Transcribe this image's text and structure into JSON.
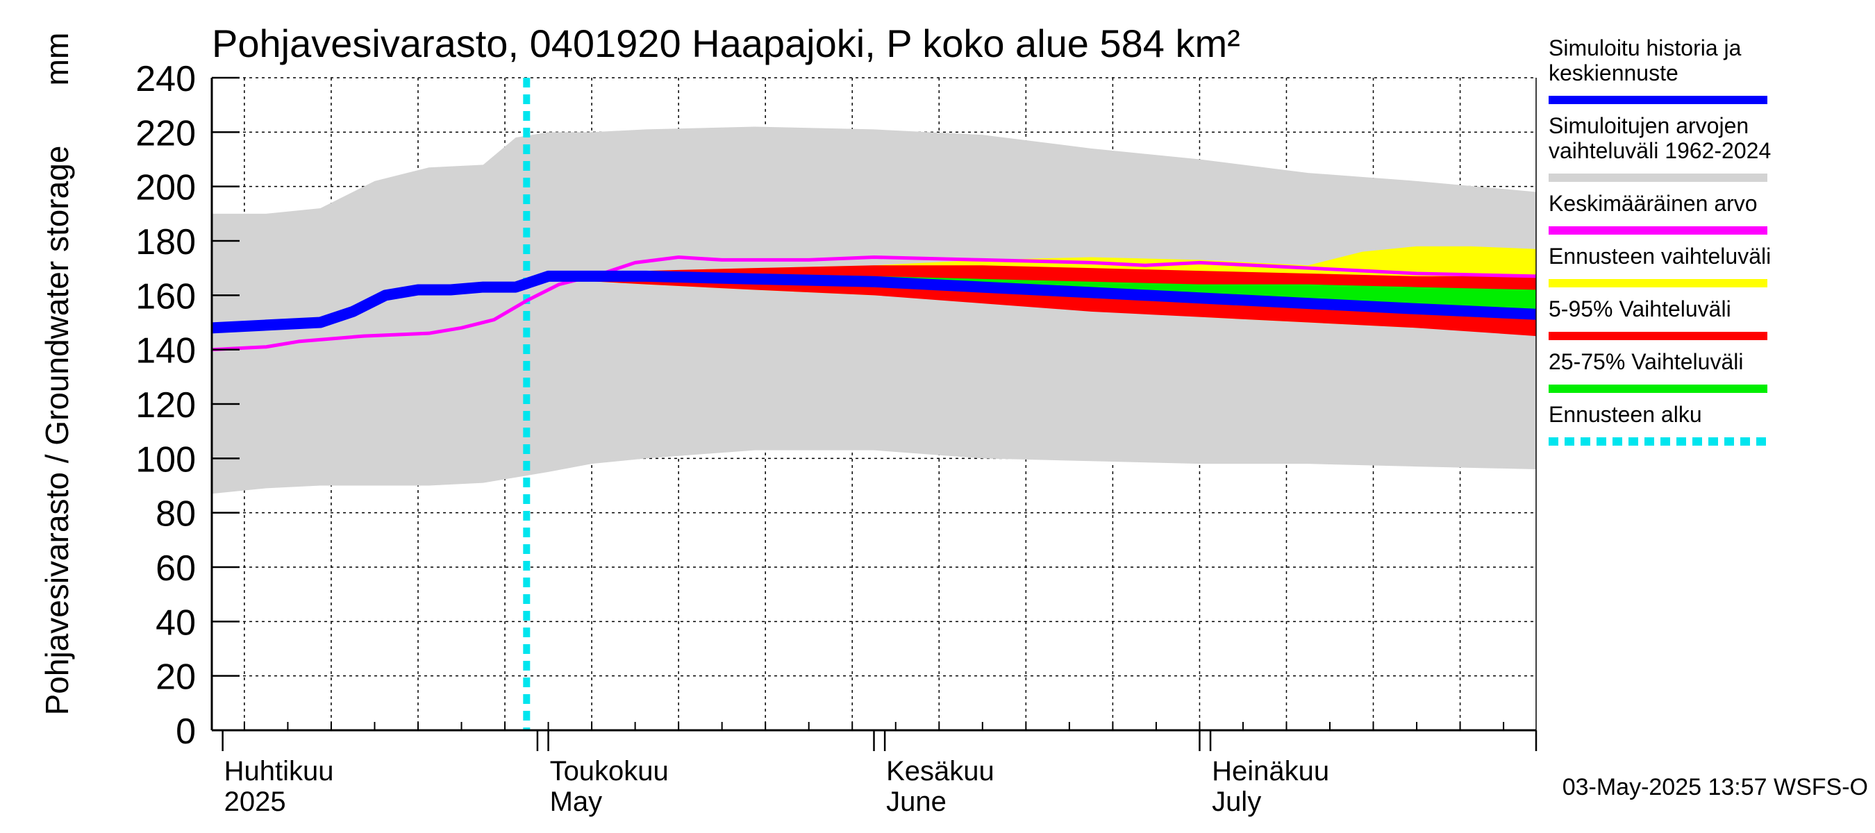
{
  "chart_data": {
    "type": "area",
    "title": "Pohjavesivarasto, 0401920 Haapajoki, P koko alue 584 km²",
    "ylabel": "Pohjavesivarasto / Groundwater storage",
    "yunit": "mm",
    "ylim": [
      0,
      240
    ],
    "yticks": [
      0,
      20,
      40,
      60,
      80,
      100,
      120,
      140,
      160,
      180,
      200,
      220,
      240
    ],
    "xlim": [
      "2025-03-31",
      "2025-07-31"
    ],
    "grid": true,
    "legend_position": "right",
    "month_labels": [
      {
        "date": "2025-04-01",
        "line1": "Huhtikuu",
        "line2": "2025"
      },
      {
        "date": "2025-05-01",
        "line1": "Toukokuu",
        "line2": "May"
      },
      {
        "date": "2025-06-01",
        "line1": "Kesäkuu",
        "line2": "June"
      },
      {
        "date": "2025-07-01",
        "line1": "Heinäkuu",
        "line2": "July"
      }
    ],
    "forecast_start": "2025-04-29",
    "series": [
      {
        "name": "Simuloitujen arvojen vaihteluväli 1962-2024",
        "kind": "band",
        "color": "#d3d3d3",
        "x": [
          "2025-03-31",
          "2025-04-05",
          "2025-04-10",
          "2025-04-15",
          "2025-04-20",
          "2025-04-25",
          "2025-04-28",
          "2025-05-01",
          "2025-05-05",
          "2025-05-10",
          "2025-05-20",
          "2025-05-31",
          "2025-06-10",
          "2025-06-20",
          "2025-06-30",
          "2025-07-10",
          "2025-07-20",
          "2025-07-31"
        ],
        "low": [
          87,
          89,
          90,
          90,
          90,
          91,
          93,
          95,
          98,
          100,
          103,
          103,
          100,
          99,
          98,
          98,
          97,
          96
        ],
        "high": [
          190,
          190,
          192,
          202,
          207,
          208,
          218,
          220,
          220,
          221,
          222,
          221,
          219,
          214,
          210,
          205,
          202,
          198
        ]
      },
      {
        "name": "Ennusteen vaihteluväli",
        "kind": "band",
        "color": "#ffff00",
        "x": [
          "2025-05-01",
          "2025-05-10",
          "2025-05-20",
          "2025-05-31",
          "2025-06-10",
          "2025-06-20",
          "2025-06-30",
          "2025-07-10",
          "2025-07-15",
          "2025-07-20",
          "2025-07-25",
          "2025-07-31"
        ],
        "low": [
          166,
          164,
          162,
          160,
          158,
          155,
          152,
          150,
          149,
          148,
          147,
          146
        ],
        "high": [
          168,
          169,
          170,
          171,
          173,
          174,
          173,
          171,
          176,
          178,
          178,
          177
        ]
      },
      {
        "name": "5-95% Vaihteluväli",
        "kind": "band",
        "color": "#ff0000",
        "x": [
          "2025-05-01",
          "2025-05-10",
          "2025-05-20",
          "2025-05-31",
          "2025-06-10",
          "2025-06-20",
          "2025-06-30",
          "2025-07-10",
          "2025-07-20",
          "2025-07-31"
        ],
        "low": [
          166,
          164,
          162,
          160,
          157,
          154,
          152,
          150,
          148,
          145
        ],
        "high": [
          168,
          169,
          170,
          171,
          171,
          170,
          169,
          168,
          167,
          167
        ]
      },
      {
        "name": "25-75% Vaihteluväli",
        "kind": "band",
        "color": "#00ee00",
        "x": [
          "2025-05-01",
          "2025-05-10",
          "2025-05-20",
          "2025-05-31",
          "2025-06-10",
          "2025-06-20",
          "2025-06-30",
          "2025-07-10",
          "2025-07-20",
          "2025-07-31"
        ],
        "low": [
          167,
          166,
          165,
          163,
          161,
          159,
          157,
          155,
          153,
          151
        ],
        "high": [
          168,
          168,
          168,
          167,
          166,
          165,
          164,
          164,
          163,
          162
        ]
      },
      {
        "name": "Keskimääräinen arvo",
        "kind": "line",
        "color": "#ff00ff",
        "x": [
          "2025-03-31",
          "2025-04-05",
          "2025-04-08",
          "2025-04-14",
          "2025-04-20",
          "2025-04-23",
          "2025-04-26",
          "2025-04-29",
          "2025-05-02",
          "2025-05-06",
          "2025-05-09",
          "2025-05-13",
          "2025-05-17",
          "2025-05-21",
          "2025-05-25",
          "2025-05-31",
          "2025-06-10",
          "2025-06-20",
          "2025-06-25",
          "2025-06-30",
          "2025-07-10",
          "2025-07-20",
          "2025-07-31"
        ],
        "y": [
          140,
          141,
          143,
          145,
          146,
          148,
          151,
          158,
          164,
          168,
          172,
          174,
          173,
          173,
          173,
          174,
          173,
          172,
          171,
          172,
          170,
          168,
          167
        ]
      },
      {
        "name": "Simuloitu historia ja keskiennuste",
        "kind": "line",
        "color": "#0000ff",
        "x": [
          "2025-03-31",
          "2025-04-05",
          "2025-04-10",
          "2025-04-13",
          "2025-04-16",
          "2025-04-19",
          "2025-04-22",
          "2025-04-25",
          "2025-04-28",
          "2025-05-01",
          "2025-05-10",
          "2025-05-20",
          "2025-05-31",
          "2025-06-10",
          "2025-06-20",
          "2025-06-30",
          "2025-07-10",
          "2025-07-20",
          "2025-07-31"
        ],
        "y": [
          148,
          149,
          150,
          154,
          160,
          162,
          162,
          163,
          163,
          167,
          167,
          166,
          165,
          163,
          161,
          159,
          157,
          155,
          153
        ]
      }
    ]
  },
  "legend": [
    {
      "label_lines": [
        "Simuloitu historia ja",
        "keskiennuste"
      ],
      "color": "#0000ff",
      "style": "solid"
    },
    {
      "label_lines": [
        "Simuloitujen arvojen",
        "vaihteluväli 1962-2024"
      ],
      "color": "#d3d3d3",
      "style": "solid"
    },
    {
      "label_lines": [
        "Keskimääräinen arvo"
      ],
      "color": "#ff00ff",
      "style": "solid"
    },
    {
      "label_lines": [
        "Ennusteen vaihteluväli"
      ],
      "color": "#ffff00",
      "style": "solid"
    },
    {
      "label_lines": [
        "5-95% Vaihteluväli"
      ],
      "color": "#ff0000",
      "style": "solid"
    },
    {
      "label_lines": [
        "25-75% Vaihteluväli"
      ],
      "color": "#00ee00",
      "style": "solid"
    },
    {
      "label_lines": [
        "Ennusteen alku"
      ],
      "color": "#00e5ee",
      "style": "dashed"
    }
  ],
  "footer": "03-May-2025 13:57 WSFS-O"
}
